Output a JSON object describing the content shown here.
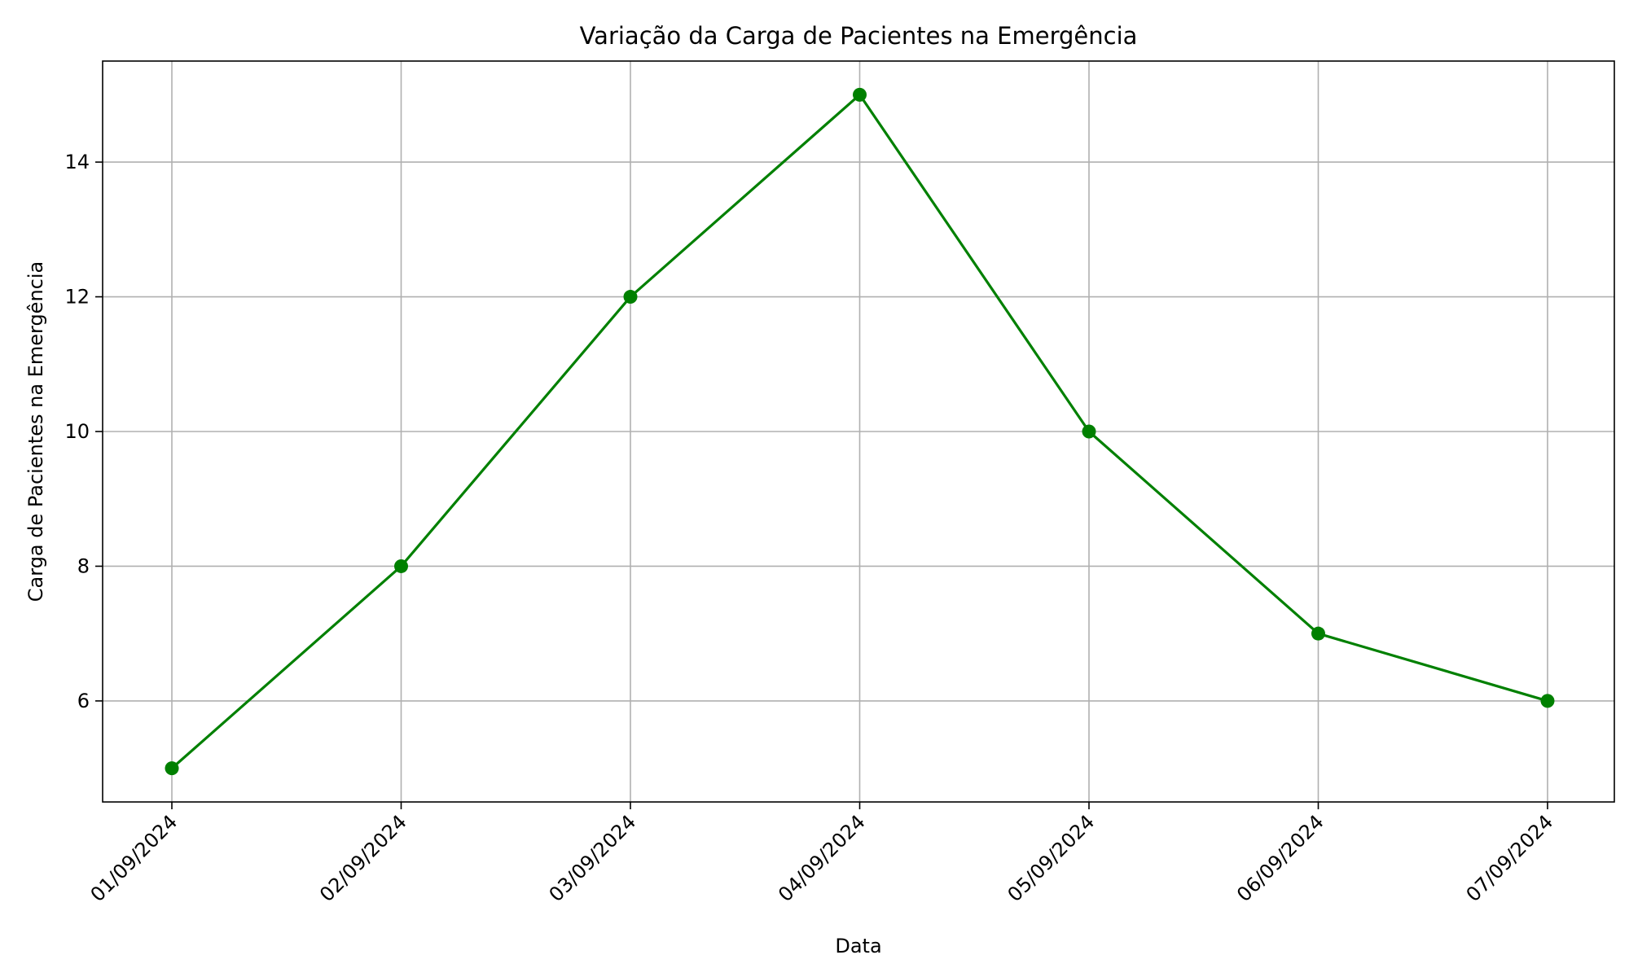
{
  "chart_data": {
    "type": "line",
    "title": "Variação da Carga de Pacientes na Emergência",
    "xlabel": "Data",
    "ylabel": "Carga de Pacientes na Emergência",
    "categories": [
      "01/09/2024",
      "02/09/2024",
      "03/09/2024",
      "04/09/2024",
      "05/09/2024",
      "06/09/2024",
      "07/09/2024"
    ],
    "series": [
      {
        "values": [
          5,
          8,
          12,
          15,
          10,
          7,
          6
        ],
        "color": "#008000",
        "marker": "circle"
      }
    ],
    "ylim": [
      4.5,
      15.5
    ],
    "yticks": [
      6,
      8,
      10,
      12,
      14
    ],
    "grid": true,
    "gridColor": "#b0b0b0",
    "xtick_rotation": 45
  }
}
